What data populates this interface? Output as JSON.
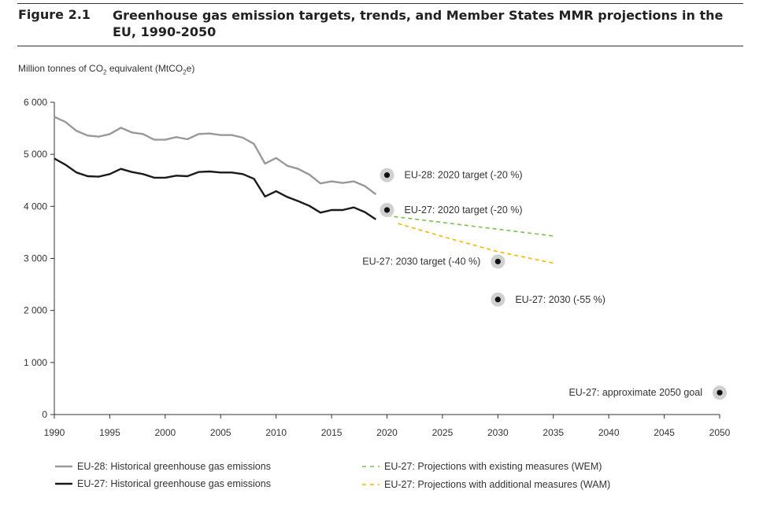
{
  "figure": {
    "label": "Figure 2.1",
    "title": "Greenhouse gas emission targets, trends, and Member States MMR projections in the EU, 1990-2050",
    "unit": {
      "pre": "Million tonnes of CO",
      "sub1": "2",
      "mid": " equivalent (MtCO",
      "sub2": "2",
      "post": "e)"
    }
  },
  "colors": {
    "eu28": "#999999",
    "eu27": "#1a1a1a",
    "wem": "#7cc04e",
    "wam": "#f5b800",
    "target_halo": "#d0d0d0",
    "target_dot": "#111111"
  },
  "chart_data": {
    "type": "line",
    "ylabel": "Million tonnes of CO2 equivalent (MtCO2e)",
    "xlim": [
      1990,
      2050
    ],
    "ylim": [
      0,
      6000
    ],
    "xticks": [
      1990,
      1995,
      2000,
      2005,
      2010,
      2015,
      2020,
      2025,
      2030,
      2035,
      2040,
      2045,
      2050
    ],
    "yticks": [
      0,
      1000,
      2000,
      3000,
      4000,
      5000,
      6000
    ],
    "ytick_labels": [
      "0",
      "1 000",
      "2 000",
      "3 000",
      "4 000",
      "5 000",
      "6 000"
    ],
    "grid": false,
    "legend_position": "bottom",
    "series": [
      {
        "key": "eu28",
        "name": "EU-28: Historical greenhouse gas emissions",
        "style": "solid",
        "x": [
          1990,
          1991,
          1992,
          1993,
          1994,
          1995,
          1996,
          1997,
          1998,
          1999,
          2000,
          2001,
          2002,
          2003,
          2004,
          2005,
          2006,
          2007,
          2008,
          2009,
          2010,
          2011,
          2012,
          2013,
          2014,
          2015,
          2016,
          2017,
          2018,
          2019
        ],
        "values": [
          5720,
          5620,
          5450,
          5360,
          5340,
          5390,
          5510,
          5420,
          5390,
          5280,
          5280,
          5330,
          5290,
          5390,
          5400,
          5370,
          5370,
          5320,
          5200,
          4820,
          4930,
          4780,
          4720,
          4610,
          4440,
          4480,
          4450,
          4480,
          4390,
          4230
        ]
      },
      {
        "key": "eu27",
        "name": "EU-27: Historical greenhouse gas emissions",
        "style": "solid",
        "x": [
          1990,
          1991,
          1992,
          1993,
          1994,
          1995,
          1996,
          1997,
          1998,
          1999,
          2000,
          2001,
          2002,
          2003,
          2004,
          2005,
          2006,
          2007,
          2008,
          2009,
          2010,
          2011,
          2012,
          2013,
          2014,
          2015,
          2016,
          2017,
          2018,
          2019
        ],
        "values": [
          4920,
          4800,
          4650,
          4580,
          4570,
          4620,
          4720,
          4660,
          4620,
          4550,
          4550,
          4590,
          4580,
          4660,
          4670,
          4650,
          4650,
          4620,
          4530,
          4190,
          4290,
          4180,
          4100,
          4010,
          3880,
          3930,
          3930,
          3980,
          3890,
          3750
        ]
      },
      {
        "key": "wem",
        "name": "EU-27: Projections with existing measures (WEM)",
        "style": "dashed",
        "x": [
          2020,
          2025,
          2030,
          2035
        ],
        "values": [
          3820,
          3690,
          3560,
          3430
        ]
      },
      {
        "key": "wam",
        "name": "EU-27: Projections with additional measures (WAM)",
        "style": "dashed",
        "x": [
          2021,
          2025,
          2030,
          2035
        ],
        "values": [
          3670,
          3420,
          3130,
          2910
        ]
      }
    ],
    "targets": [
      {
        "x": 2020,
        "y": 4600,
        "label": "EU-28: 2020 target (-20 %)",
        "side": "right"
      },
      {
        "x": 2020,
        "y": 3930,
        "label": "EU-27: 2020 target (-20 %)",
        "side": "right"
      },
      {
        "x": 2030,
        "y": 2940,
        "label": "EU-27: 2030 target (-40 %)",
        "side": "left"
      },
      {
        "x": 2030,
        "y": 2210,
        "label": "EU-27: 2030 (-55 %)",
        "side": "right"
      },
      {
        "x": 2050,
        "y": 420,
        "label": "EU-27: approximate 2050 goal",
        "side": "left"
      }
    ]
  }
}
